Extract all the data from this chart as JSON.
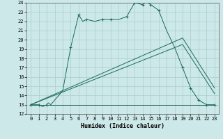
{
  "xlabel": "Humidex (Indice chaleur)",
  "bg_color": "#cce8e8",
  "grid_color": "#aacece",
  "line_color": "#1a6b5a",
  "xlim": [
    -0.5,
    23.5
  ],
  "ylim": [
    12,
    24
  ],
  "x_ticks": [
    0,
    1,
    2,
    3,
    4,
    5,
    6,
    7,
    8,
    9,
    10,
    11,
    12,
    13,
    14,
    15,
    16,
    17,
    18,
    19,
    20,
    21,
    22,
    23
  ],
  "y_ticks": [
    12,
    13,
    14,
    15,
    16,
    17,
    18,
    19,
    20,
    21,
    22,
    23,
    24
  ],
  "line1_x": [
    0,
    1,
    1.5,
    2,
    2.2,
    2.5,
    3,
    4,
    5,
    6,
    6.5,
    7,
    8,
    9,
    10,
    11,
    12,
    13,
    14,
    14.5,
    15,
    16,
    17,
    18,
    19,
    20,
    21,
    22,
    23
  ],
  "line1_y": [
    13,
    13,
    12.8,
    13.0,
    13.2,
    13.0,
    13.5,
    14.5,
    19.2,
    22.7,
    22.0,
    22.2,
    22.0,
    22.2,
    22.2,
    22.2,
    22.5,
    24.0,
    23.8,
    24.1,
    23.8,
    23.2,
    21.0,
    19.2,
    17.0,
    14.8,
    13.5,
    13.0,
    13.0
  ],
  "markers1_x": [
    0,
    1,
    2,
    5,
    6,
    7,
    9,
    10,
    12,
    13,
    14,
    15,
    16,
    19,
    20,
    21,
    22,
    23
  ],
  "markers1_y": [
    13,
    13,
    13.0,
    19.2,
    22.7,
    22.2,
    22.2,
    22.2,
    22.5,
    24.0,
    23.8,
    23.8,
    23.2,
    17.0,
    14.8,
    13.5,
    13.0,
    13.0
  ],
  "line2_x": [
    0,
    16,
    23
  ],
  "line2_y": [
    13,
    13,
    13
  ],
  "line3_x": [
    0,
    19,
    23
  ],
  "line3_y": [
    13,
    19.5,
    14.2
  ],
  "line4_x": [
    0,
    19,
    23
  ],
  "line4_y": [
    13,
    20.2,
    14.8
  ],
  "xlabel_fontsize": 6,
  "tick_fontsize": 5
}
